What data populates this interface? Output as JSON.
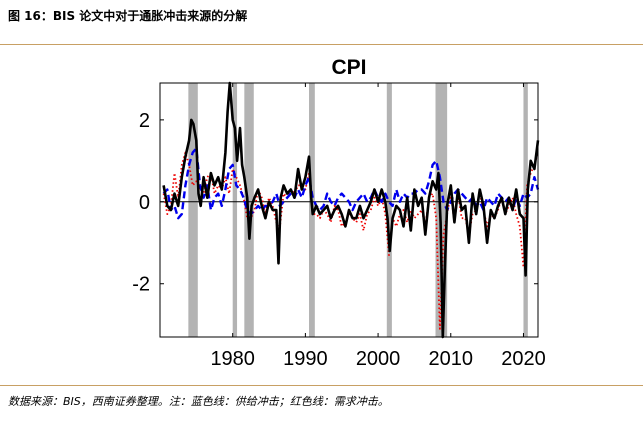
{
  "figure": {
    "title": "图 16：BIS 论文中对于通胀冲击来源的分解",
    "source": "数据来源：BIS，西南证券整理。注：蓝色线：供给冲击；红色线：需求冲击。"
  },
  "colors": {
    "accent_rule": "#c8a064",
    "recession": "#b3b3b3",
    "cpi": "#000000",
    "supply": "#0000ee",
    "demand": "#ee0000"
  },
  "chart_data": {
    "type": "line",
    "title": "CPI",
    "xlabel": "",
    "ylabel": "",
    "xlim": [
      1970,
      2022
    ],
    "ylim": [
      -3.3,
      2.9
    ],
    "xticks": [
      1980,
      1990,
      2000,
      2010,
      2020
    ],
    "yticks": [
      -2,
      0,
      2
    ],
    "xtick_labels": [
      "1980",
      "1990",
      "2000",
      "2010",
      "2020"
    ],
    "ytick_labels": [
      "-2",
      "0",
      "2"
    ],
    "zero_line": true,
    "recessions": [
      [
        1973.9,
        1975.2
      ],
      [
        1980.0,
        1980.6
      ],
      [
        1981.6,
        1982.9
      ],
      [
        1990.5,
        1991.3
      ],
      [
        2001.2,
        2001.9
      ],
      [
        2007.9,
        2009.5
      ],
      [
        2020.0,
        2020.6
      ]
    ],
    "series": [
      {
        "name": "CPI",
        "style": "solid",
        "x": [
          1970.5,
          1971,
          1971.5,
          1972,
          1972.5,
          1973,
          1973.5,
          1974,
          1974.3,
          1974.6,
          1975,
          1975.3,
          1975.6,
          1976,
          1976.5,
          1977,
          1977.5,
          1978,
          1978.5,
          1979,
          1979.3,
          1979.6,
          1980,
          1980.3,
          1980.6,
          1981,
          1981.3,
          1981.6,
          1982,
          1982.3,
          1982.6,
          1983,
          1983.5,
          1984,
          1984.5,
          1985,
          1985.5,
          1986,
          1986.3,
          1986.6,
          1987,
          1987.5,
          1988,
          1988.5,
          1989,
          1989.5,
          1990,
          1990.5,
          1990.8,
          1991,
          1991.5,
          1992,
          1992.5,
          1993,
          1993.5,
          1994,
          1994.5,
          1995,
          1995.5,
          1996,
          1996.5,
          1997,
          1997.5,
          1998,
          1998.5,
          1999,
          1999.5,
          2000,
          2000.5,
          2001,
          2001.3,
          2001.6,
          2002,
          2002.5,
          2003,
          2003.5,
          2004,
          2004.5,
          2005,
          2005.5,
          2006,
          2006.5,
          2007,
          2007.5,
          2008,
          2008.3,
          2008.6,
          2008.9,
          2009.2,
          2009.5,
          2010,
          2010.5,
          2011,
          2011.5,
          2012,
          2012.5,
          2013,
          2013.5,
          2014,
          2014.5,
          2015,
          2015.5,
          2016,
          2016.5,
          2017,
          2017.5,
          2018,
          2018.5,
          2019,
          2019.5,
          2020,
          2020.3,
          2020.6,
          2021,
          2021.5,
          2022
        ],
        "values": [
          0.4,
          -0.1,
          -0.2,
          0.2,
          -0.1,
          0.6,
          1.1,
          1.5,
          2.0,
          1.9,
          1.5,
          0.2,
          -0.1,
          0.6,
          0.1,
          0.7,
          0.4,
          0.6,
          0.3,
          1.2,
          2.2,
          2.9,
          2.0,
          1.8,
          1.0,
          1.8,
          0.9,
          0.6,
          0.1,
          -0.9,
          -0.1,
          0.1,
          0.3,
          -0.1,
          -0.4,
          0.0,
          -0.2,
          -0.2,
          -1.5,
          0.1,
          0.4,
          0.2,
          0.3,
          0.1,
          0.8,
          0.3,
          0.6,
          1.1,
          0.1,
          -0.3,
          -0.1,
          -0.3,
          -0.2,
          -0.1,
          -0.4,
          -0.2,
          -0.1,
          -0.3,
          -0.6,
          -0.2,
          -0.4,
          -0.4,
          -0.1,
          -0.4,
          -0.2,
          0.0,
          0.3,
          0.0,
          0.3,
          0.0,
          -0.4,
          -1.2,
          -0.4,
          -0.1,
          -0.2,
          -0.6,
          0.1,
          -0.7,
          0.3,
          -0.1,
          0.1,
          -0.8,
          0.1,
          0.5,
          0.3,
          0.7,
          -0.5,
          -3.3,
          -1.5,
          -0.1,
          0.4,
          -0.5,
          0.3,
          -0.2,
          -0.1,
          -1.0,
          0.2,
          -0.3,
          0.3,
          -0.1,
          -1.0,
          -0.2,
          -0.4,
          -0.1,
          0.1,
          -0.3,
          0.1,
          -0.2,
          0.3,
          -0.3,
          -0.4,
          -1.8,
          0.3,
          1.0,
          0.8,
          1.5
        ]
      },
      {
        "name": "供给冲击",
        "style": "dashed",
        "x": [
          1970.5,
          1971,
          1971.5,
          1972,
          1972.5,
          1973,
          1973.5,
          1974,
          1974.5,
          1975,
          1975.5,
          1976,
          1976.5,
          1977,
          1977.5,
          1978,
          1978.5,
          1979,
          1979.5,
          1980,
          1980.5,
          1981,
          1981.5,
          1982,
          1982.5,
          1983,
          1983.5,
          1984,
          1984.5,
          1985,
          1985.5,
          1986,
          1986.5,
          1987,
          1987.5,
          1988,
          1988.5,
          1989,
          1989.5,
          1990,
          1990.5,
          1991,
          1991.5,
          1992,
          1992.5,
          1993,
          1993.5,
          1994,
          1994.5,
          1995,
          1995.5,
          1996,
          1996.5,
          1997,
          1997.5,
          1998,
          1998.5,
          1999,
          1999.5,
          2000,
          2000.5,
          2001,
          2001.5,
          2002,
          2002.5,
          2003,
          2003.5,
          2004,
          2004.5,
          2005,
          2005.5,
          2006,
          2006.5,
          2007,
          2007.5,
          2008,
          2008.5,
          2009,
          2009.5,
          2010,
          2010.5,
          2011,
          2011.5,
          2012,
          2012.5,
          2013,
          2013.5,
          2014,
          2014.5,
          2015,
          2015.5,
          2016,
          2016.5,
          2017,
          2017.5,
          2018,
          2018.5,
          2019,
          2019.5,
          2020,
          2020.5,
          2021,
          2021.5,
          2022
        ],
        "values": [
          0.2,
          0.3,
          -0.2,
          -0.1,
          -0.4,
          -0.3,
          0.4,
          0.9,
          1.2,
          1.3,
          0.4,
          0.1,
          0.4,
          -0.2,
          0.1,
          0.2,
          -0.1,
          0.3,
          0.8,
          0.9,
          0.4,
          0.3,
          0.1,
          -0.2,
          -0.3,
          -0.2,
          -0.1,
          -0.2,
          -0.1,
          -0.1,
          0.0,
          0.2,
          -0.1,
          0.0,
          0.1,
          0.2,
          0.1,
          0.3,
          0.1,
          0.4,
          0.6,
          0.1,
          -0.1,
          -0.2,
          -0.1,
          0.2,
          0.0,
          -0.1,
          0.1,
          0.2,
          0.1,
          0.0,
          -0.2,
          0.0,
          0.1,
          0.2,
          0.0,
          0.1,
          0.3,
          0.1,
          0.0,
          0.2,
          0.0,
          -0.1,
          0.3,
          0.0,
          0.2,
          0.1,
          0.2,
          0.2,
          0.3,
          0.3,
          0.2,
          0.5,
          0.9,
          1.0,
          0.6,
          0.0,
          -0.2,
          0.0,
          0.2,
          0.3,
          0.2,
          0.1,
          0.0,
          0.1,
          -0.1,
          0.0,
          -0.2,
          0.1,
          0.0,
          -0.1,
          0.2,
          0.1,
          0.0,
          0.1,
          -0.2,
          0.1,
          -0.1,
          0.2,
          0.1,
          0.2,
          0.6,
          0.3
        ]
      },
      {
        "name": "需求冲击",
        "style": "dotted",
        "x": [
          1970.5,
          1971,
          1971.5,
          1972,
          1972.5,
          1973,
          1973.5,
          1974,
          1974.5,
          1975,
          1975.5,
          1976,
          1976.5,
          1977,
          1977.5,
          1978,
          1978.5,
          1979,
          1979.5,
          1980,
          1980.5,
          1981,
          1981.5,
          1982,
          1982.5,
          1983,
          1983.5,
          1984,
          1984.5,
          1985,
          1985.5,
          1986,
          1986.5,
          1987,
          1987.5,
          1988,
          1988.5,
          1989,
          1989.5,
          1990,
          1990.5,
          1991,
          1991.5,
          1992,
          1992.5,
          1993,
          1993.5,
          1994,
          1994.5,
          1995,
          1995.5,
          1996,
          1996.5,
          1997,
          1997.5,
          1998,
          1998.5,
          1999,
          1999.5,
          2000,
          2000.5,
          2001,
          2001.5,
          2002,
          2002.5,
          2003,
          2003.5,
          2004,
          2004.5,
          2005,
          2005.5,
          2006,
          2006.5,
          2007,
          2007.5,
          2008,
          2008.5,
          2009,
          2009.5,
          2010,
          2010.5,
          2011,
          2011.5,
          2012,
          2012.5,
          2013,
          2013.5,
          2014,
          2014.5,
          2015,
          2015.5,
          2016,
          2016.5,
          2017,
          2017.5,
          2018,
          2018.5,
          2019,
          2019.5,
          2020,
          2020.5,
          2021,
          2021.5,
          2022
        ],
        "values": [
          0.2,
          -0.3,
          -0.1,
          0.7,
          0.1,
          0.9,
          1.2,
          0.9,
          0.4,
          0.5,
          0.3,
          0.2,
          0.6,
          0.7,
          0.2,
          0.4,
          0.3,
          0.6,
          0.2,
          0.8,
          0.6,
          0.4,
          0.1,
          -0.4,
          -0.4,
          -0.2,
          0.3,
          0.1,
          -0.3,
          0.1,
          -0.1,
          -0.5,
          -0.6,
          0.2,
          0.1,
          0.3,
          0.2,
          0.4,
          0.4,
          0.3,
          0.7,
          -0.3,
          -0.3,
          -0.4,
          -0.2,
          -0.3,
          -0.5,
          -0.1,
          -0.2,
          -0.6,
          -0.5,
          -0.3,
          -0.4,
          -0.5,
          -0.3,
          -0.7,
          -0.3,
          -0.2,
          0.1,
          -0.1,
          0.1,
          -0.3,
          -1.3,
          -0.4,
          -0.6,
          -0.3,
          -0.2,
          -0.5,
          -0.2,
          -0.4,
          -0.3,
          -0.2,
          -0.6,
          0.1,
          0.2,
          -0.4,
          -3.1,
          -0.8,
          -0.3,
          0.2,
          -0.5,
          0.2,
          -0.4,
          -0.4,
          -0.8,
          -0.3,
          -0.2,
          0.2,
          -0.2,
          -0.6,
          -0.3,
          -0.4,
          -0.2,
          0.1,
          -0.3,
          -0.1,
          0.1,
          -0.3,
          -0.6,
          -1.6,
          0.4,
          0.7,
          0.9,
          1.2
        ]
      }
    ]
  }
}
